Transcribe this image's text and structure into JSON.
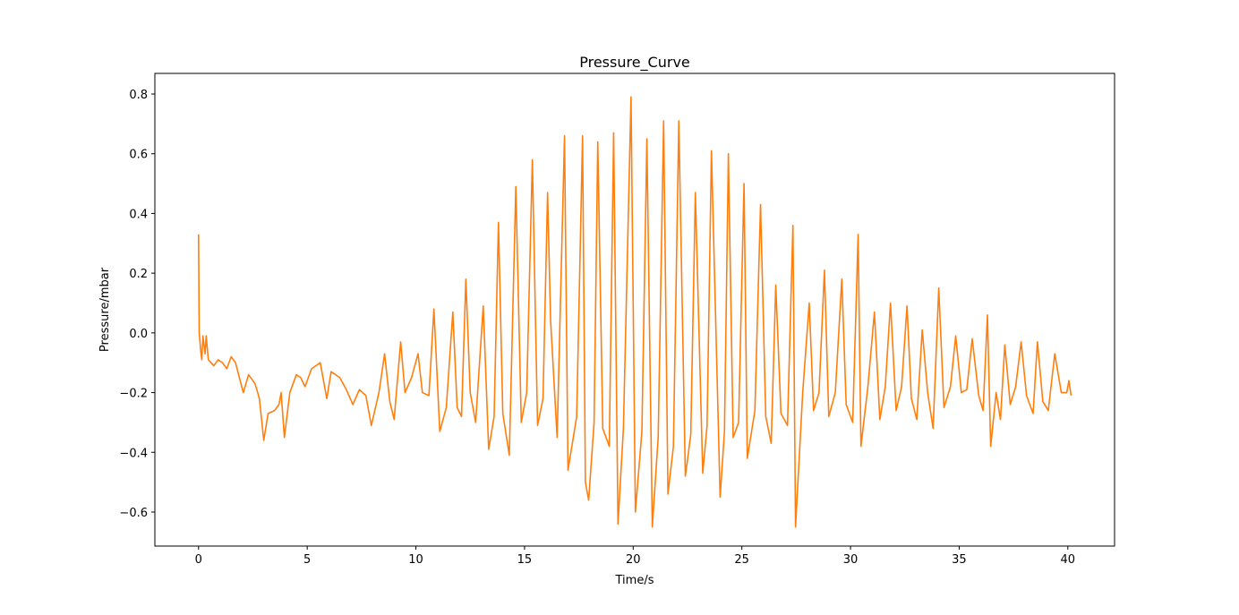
{
  "chart_data": {
    "type": "line",
    "title": "Pressure_Curve",
    "xlabel": "Time/s",
    "ylabel": "Pressure/mbar",
    "xlim": [
      -2.01,
      42.15
    ],
    "ylim": [
      -0.714,
      0.869
    ],
    "xticks": [
      0,
      5,
      10,
      15,
      20,
      25,
      30,
      35,
      40
    ],
    "yticks": [
      {
        "value": -0.6,
        "label": "−0.6"
      },
      {
        "value": -0.4,
        "label": "−0.4"
      },
      {
        "value": -0.2,
        "label": "−0.2"
      },
      {
        "value": 0,
        "label": "0.0"
      },
      0.2,
      0.4,
      0.6,
      0.8
    ],
    "x": [
      0,
      0.03,
      0.1,
      0.15,
      0.2,
      0.3,
      0.35,
      0.45,
      0.7,
      0.9,
      1.1,
      1.3,
      1.5,
      1.7,
      2.06,
      2.3,
      2.6,
      2.8,
      3.0,
      3.2,
      3.5,
      3.7,
      3.8,
      3.95,
      4.2,
      4.5,
      4.7,
      4.9,
      5.2,
      5.6,
      5.9,
      6.1,
      6.5,
      6.8,
      7.1,
      7.4,
      7.7,
      7.95,
      8.3,
      8.56,
      8.8,
      9.0,
      9.3,
      9.5,
      9.8,
      10.1,
      10.3,
      10.6,
      10.83,
      11.1,
      11.4,
      11.7,
      11.9,
      12.1,
      12.3,
      12.5,
      12.75,
      13.1,
      13.35,
      13.6,
      13.8,
      14.0,
      14.3,
      14.6,
      14.85,
      15.1,
      15.36,
      15.6,
      15.85,
      16.06,
      16.2,
      16.5,
      16.84,
      17.0,
      17.4,
      17.67,
      17.8,
      17.95,
      18.2,
      18.37,
      18.6,
      18.9,
      19.1,
      19.3,
      19.55,
      19.9,
      20.1,
      20.4,
      20.63,
      20.88,
      21.15,
      21.4,
      21.6,
      21.85,
      22.1,
      22.4,
      22.65,
      22.86,
      23.2,
      23.4,
      23.6,
      24.0,
      24.2,
      24.38,
      24.6,
      24.85,
      25.1,
      25.25,
      25.6,
      25.86,
      26.1,
      26.35,
      26.56,
      26.8,
      27.1,
      27.35,
      27.47,
      27.8,
      28.1,
      28.3,
      28.55,
      28.8,
      29.0,
      29.3,
      29.6,
      29.8,
      30.1,
      30.35,
      30.48,
      30.8,
      31.1,
      31.35,
      31.6,
      31.84,
      32.1,
      32.35,
      32.6,
      32.8,
      33.05,
      33.3,
      33.55,
      33.8,
      34.06,
      34.3,
      34.6,
      34.84,
      35.1,
      35.35,
      35.6,
      35.9,
      36.1,
      36.3,
      36.45,
      36.7,
      36.9,
      37.1,
      37.35,
      37.6,
      37.85,
      38.1,
      38.4,
      38.6,
      38.85,
      39.1,
      39.4,
      39.7,
      39.95,
      40.05,
      40.15
    ],
    "series": [
      {
        "name": "Pressure",
        "color": "#ff7f0e",
        "values": [
          0.33,
          0.0,
          -0.06,
          -0.09,
          -0.01,
          -0.07,
          -0.01,
          -0.09,
          -0.11,
          -0.09,
          -0.1,
          -0.12,
          -0.08,
          -0.1,
          -0.2,
          -0.14,
          -0.17,
          -0.22,
          -0.36,
          -0.27,
          -0.26,
          -0.24,
          -0.2,
          -0.35,
          -0.2,
          -0.14,
          -0.15,
          -0.18,
          -0.12,
          -0.1,
          -0.22,
          -0.13,
          -0.15,
          -0.19,
          -0.24,
          -0.19,
          -0.21,
          -0.31,
          -0.2,
          -0.07,
          -0.23,
          -0.29,
          -0.03,
          -0.2,
          -0.15,
          -0.07,
          -0.2,
          -0.21,
          0.08,
          -0.33,
          -0.25,
          0.07,
          -0.25,
          -0.28,
          0.18,
          -0.2,
          -0.3,
          0.09,
          -0.39,
          -0.28,
          0.37,
          -0.27,
          -0.41,
          0.49,
          -0.3,
          -0.2,
          0.58,
          -0.31,
          -0.22,
          0.47,
          0.04,
          -0.35,
          0.66,
          -0.46,
          -0.28,
          0.66,
          -0.5,
          -0.56,
          -0.3,
          0.64,
          -0.32,
          -0.38,
          0.67,
          -0.64,
          -0.32,
          0.79,
          -0.6,
          -0.33,
          0.65,
          -0.65,
          -0.35,
          0.71,
          -0.54,
          -0.38,
          0.71,
          -0.48,
          -0.34,
          0.47,
          -0.47,
          -0.31,
          0.61,
          -0.55,
          -0.33,
          0.6,
          -0.35,
          -0.3,
          0.5,
          -0.42,
          -0.26,
          0.43,
          -0.28,
          -0.37,
          0.16,
          -0.27,
          -0.31,
          0.36,
          -0.65,
          -0.2,
          0.1,
          -0.26,
          -0.2,
          0.21,
          -0.28,
          -0.2,
          0.18,
          -0.24,
          -0.3,
          0.33,
          -0.38,
          -0.18,
          0.07,
          -0.29,
          -0.18,
          0.1,
          -0.26,
          -0.18,
          0.09,
          -0.22,
          -0.29,
          0.01,
          -0.2,
          -0.32,
          0.15,
          -0.25,
          -0.18,
          -0.01,
          -0.2,
          -0.19,
          -0.02,
          -0.21,
          -0.26,
          0.06,
          -0.38,
          -0.2,
          -0.29,
          -0.04,
          -0.24,
          -0.18,
          -0.03,
          -0.21,
          -0.27,
          -0.03,
          -0.23,
          -0.26,
          -0.07,
          -0.2,
          -0.2,
          -0.16,
          -0.21
        ]
      }
    ]
  }
}
